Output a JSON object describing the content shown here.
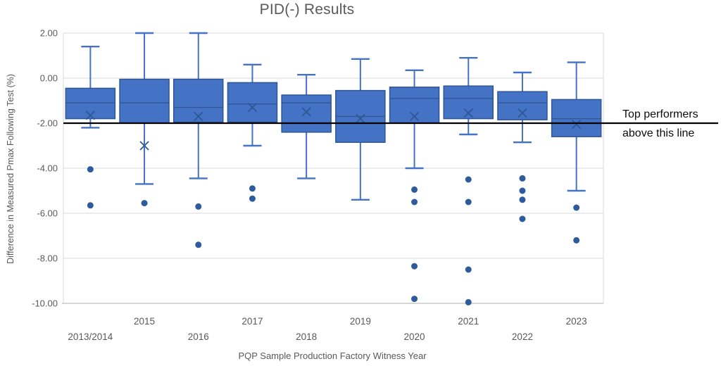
{
  "colors": {
    "box_fill": "#4472C4",
    "box_border": "#2E5796",
    "whisker": "#4472C4",
    "median": "#2E5796",
    "mean_marker": "#2E5796",
    "outlier": "#2E5A9E",
    "grid": "#D9D9D9",
    "axis_line": "#C9C9C9",
    "axis_text": "#595959",
    "title_text": "#595959",
    "reference_line": "#000000"
  },
  "chart_data": {
    "type": "boxplot",
    "title": "PID(-) Results",
    "xlabel": "PQP Sample Production Factory Witness Year",
    "ylabel": "Difference in Measured Pmax Following Test (%)",
    "ylim": [
      -10,
      2
    ],
    "grid": true,
    "yticks": [
      {
        "value": 2,
        "label": "2.00"
      },
      {
        "value": 0,
        "label": "0.00"
      },
      {
        "value": -2,
        "label": "-2.00"
      },
      {
        "value": -4,
        "label": "-4.00"
      },
      {
        "value": -6,
        "label": "-6.00"
      },
      {
        "value": -8,
        "label": "-8.00"
      },
      {
        "value": -10,
        "label": "-10.00"
      }
    ],
    "reference_line": {
      "y": -2,
      "label_line1": "Top performers",
      "label_line2": "above this line"
    },
    "categories": [
      "2013/2014",
      "2015",
      "2016",
      "2017",
      "2018",
      "2019",
      "2020",
      "2021",
      "2022",
      "2023"
    ],
    "series": [
      {
        "category": "2013/2014",
        "whisker_low": -2.2,
        "q1": -1.8,
        "median": -1.1,
        "q3": -0.45,
        "whisker_high": 1.4,
        "mean": -1.65,
        "outliers": [
          -4.05,
          -5.65
        ]
      },
      {
        "category": "2015",
        "whisker_low": -4.7,
        "q1": -2.0,
        "median": -1.1,
        "q3": -0.05,
        "whisker_high": 2.0,
        "mean": -3.0,
        "outliers": [
          -5.55
        ]
      },
      {
        "category": "2016",
        "whisker_low": -4.45,
        "q1": -1.95,
        "median": -1.3,
        "q3": -0.05,
        "whisker_high": 2.0,
        "mean": -1.7,
        "outliers": [
          -5.7,
          -7.4
        ]
      },
      {
        "category": "2017",
        "whisker_low": -3.0,
        "q1": -1.95,
        "median": -1.15,
        "q3": -0.2,
        "whisker_high": 0.6,
        "mean": -1.3,
        "outliers": [
          -4.9,
          -5.35
        ]
      },
      {
        "category": "2018",
        "whisker_low": -4.45,
        "q1": -2.4,
        "median": -1.1,
        "q3": -0.75,
        "whisker_high": 0.15,
        "mean": -1.5,
        "outliers": []
      },
      {
        "category": "2019",
        "whisker_low": -5.4,
        "q1": -2.85,
        "median": -1.7,
        "q3": -0.55,
        "whisker_high": 0.85,
        "mean": -1.8,
        "outliers": []
      },
      {
        "category": "2020",
        "whisker_low": -4.0,
        "q1": -2.0,
        "median": -0.9,
        "q3": -0.4,
        "whisker_high": 0.35,
        "mean": -1.7,
        "outliers": [
          -4.95,
          -5.5,
          -8.35,
          -9.8
        ]
      },
      {
        "category": "2021",
        "whisker_low": -2.5,
        "q1": -1.8,
        "median": -0.9,
        "q3": -0.35,
        "whisker_high": 0.9,
        "mean": -1.55,
        "outliers": [
          -4.5,
          -5.5,
          -8.5,
          -9.95
        ]
      },
      {
        "category": "2022",
        "whisker_low": -2.85,
        "q1": -1.85,
        "median": -1.1,
        "q3": -0.6,
        "whisker_high": 0.25,
        "mean": -1.55,
        "outliers": [
          -4.45,
          -5.0,
          -5.4,
          -6.25
        ]
      },
      {
        "category": "2023",
        "whisker_low": -5.0,
        "q1": -2.6,
        "median": -1.8,
        "q3": -0.95,
        "whisker_high": 0.7,
        "mean": -2.05,
        "outliers": [
          -5.75,
          -7.2
        ]
      }
    ]
  }
}
